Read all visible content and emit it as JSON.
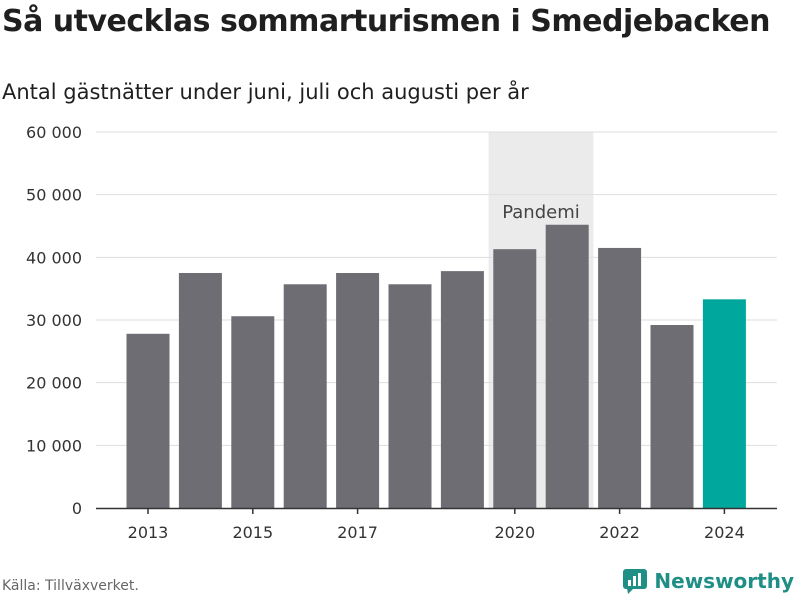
{
  "header": {
    "title": "Så utvecklas sommarturismen i Smedjebacken",
    "subtitle": "Antal gästnätter under juni, juli och augusti per år"
  },
  "footer": {
    "source": "Källa: Tillväxverket.",
    "brand": "Newsworthy",
    "brand_icon": "newsworthy-logo-icon"
  },
  "colors": {
    "bar": "#6e6d73",
    "highlight": "#00a79d",
    "shade": "#ebebeb",
    "grid": "#dedede",
    "axis": "#333333",
    "brand": "#1f8f86"
  },
  "chart_data": {
    "type": "bar",
    "categories": [
      "2013",
      "2014",
      "2015",
      "2016",
      "2017",
      "2018",
      "2019",
      "2020",
      "2021",
      "2022",
      "2023",
      "2024"
    ],
    "values": [
      27800,
      37500,
      30600,
      35700,
      37500,
      35700,
      37800,
      41300,
      45200,
      41500,
      29200,
      33300
    ],
    "highlight_category": "2024",
    "x_tick_labels": [
      "2013",
      "2015",
      "2017",
      "2020",
      "2022",
      "2024"
    ],
    "y_ticks": [
      0,
      10000,
      20000,
      30000,
      40000,
      50000,
      60000
    ],
    "y_tick_labels": [
      "0",
      "10 000",
      "20 000",
      "30 000",
      "40 000",
      "50 000",
      "60 000"
    ],
    "ylim": [
      0,
      60000
    ],
    "grid": true,
    "shaded_region": {
      "from": "2020",
      "to": "2021",
      "label": "Pandemi"
    }
  }
}
